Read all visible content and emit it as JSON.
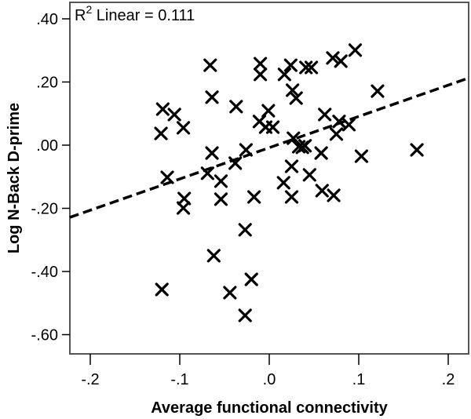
{
  "chart_data": {
    "type": "scatter",
    "title": "",
    "xlabel": "Average functional connectivity",
    "ylabel": "Log N-Back D-prime",
    "xlim": [
      -0.223,
      0.224
    ],
    "ylim": [
      -0.658,
      0.453
    ],
    "x_ticks": [
      -0.2,
      -0.1,
      0.0,
      0.1,
      0.2
    ],
    "x_tick_labels": [
      "-.2",
      "-.1",
      ".0",
      ".1",
      ".2"
    ],
    "y_ticks": [
      0.4,
      0.2,
      0.0,
      -0.2,
      -0.4,
      -0.6
    ],
    "y_tick_labels": [
      ".40",
      ".20",
      ".00",
      "-.20",
      "-.40",
      "-.60"
    ],
    "grid": false,
    "legend": null,
    "marker": "x",
    "annotation": {
      "prefix": "R",
      "superscript": "2",
      "text": " Linear = 0.111"
    },
    "fit_line": {
      "type": "linear",
      "style": "dashed",
      "slope": 0.99,
      "intercept": -0.008,
      "r_squared": 0.111
    },
    "points": [
      {
        "x": -0.119,
        "y": 0.114
      },
      {
        "x": -0.121,
        "y": 0.037
      },
      {
        "x": -0.114,
        "y": -0.102
      },
      {
        "x": -0.12,
        "y": -0.457
      },
      {
        "x": -0.096,
        "y": 0.055
      },
      {
        "x": -0.106,
        "y": 0.097
      },
      {
        "x": -0.095,
        "y": -0.169
      },
      {
        "x": -0.096,
        "y": -0.199
      },
      {
        "x": -0.066,
        "y": 0.253
      },
      {
        "x": -0.064,
        "y": 0.152
      },
      {
        "x": -0.064,
        "y": -0.025
      },
      {
        "x": -0.069,
        "y": -0.089
      },
      {
        "x": -0.062,
        "y": -0.35
      },
      {
        "x": -0.054,
        "y": -0.114
      },
      {
        "x": -0.054,
        "y": -0.171
      },
      {
        "x": -0.037,
        "y": 0.122
      },
      {
        "x": -0.038,
        "y": -0.057
      },
      {
        "x": -0.026,
        "y": -0.015
      },
      {
        "x": -0.027,
        "y": -0.268
      },
      {
        "x": -0.044,
        "y": -0.467
      },
      {
        "x": -0.02,
        "y": -0.425
      },
      {
        "x": -0.027,
        "y": -0.539
      },
      {
        "x": -0.017,
        "y": -0.164
      },
      {
        "x": -0.01,
        "y": 0.258
      },
      {
        "x": -0.01,
        "y": 0.224
      },
      {
        "x": -0.011,
        "y": 0.075
      },
      {
        "x": -0.001,
        "y": 0.109
      },
      {
        "x": -0.004,
        "y": 0.057
      },
      {
        "x": 0.004,
        "y": 0.057
      },
      {
        "x": 0.016,
        "y": -0.119
      },
      {
        "x": 0.017,
        "y": 0.224
      },
      {
        "x": 0.024,
        "y": 0.253
      },
      {
        "x": 0.025,
        "y": -0.067
      },
      {
        "x": 0.027,
        "y": 0.022
      },
      {
        "x": 0.026,
        "y": 0.174
      },
      {
        "x": 0.03,
        "y": 0.149
      },
      {
        "x": 0.025,
        "y": -0.164
      },
      {
        "x": 0.033,
        "y": -0.005
      },
      {
        "x": 0.037,
        "y": -0.007
      },
      {
        "x": 0.04,
        "y": -0.002
      },
      {
        "x": 0.041,
        "y": 0.246
      },
      {
        "x": 0.047,
        "y": 0.246
      },
      {
        "x": 0.045,
        "y": -0.094
      },
      {
        "x": 0.058,
        "y": -0.025
      },
      {
        "x": 0.059,
        "y": -0.144
      },
      {
        "x": 0.072,
        "y": -0.159
      },
      {
        "x": 0.071,
        "y": 0.276
      },
      {
        "x": 0.08,
        "y": 0.266
      },
      {
        "x": 0.062,
        "y": 0.097
      },
      {
        "x": 0.078,
        "y": 0.075
      },
      {
        "x": 0.075,
        "y": 0.035
      },
      {
        "x": 0.089,
        "y": 0.065
      },
      {
        "x": 0.096,
        "y": 0.301
      },
      {
        "x": 0.121,
        "y": 0.171
      },
      {
        "x": 0.103,
        "y": -0.035
      },
      {
        "x": 0.165,
        "y": -0.015
      }
    ]
  },
  "colors": {
    "marker": "#000000",
    "axis": "#000000",
    "frame": "#555555",
    "background": "#ffffff"
  }
}
